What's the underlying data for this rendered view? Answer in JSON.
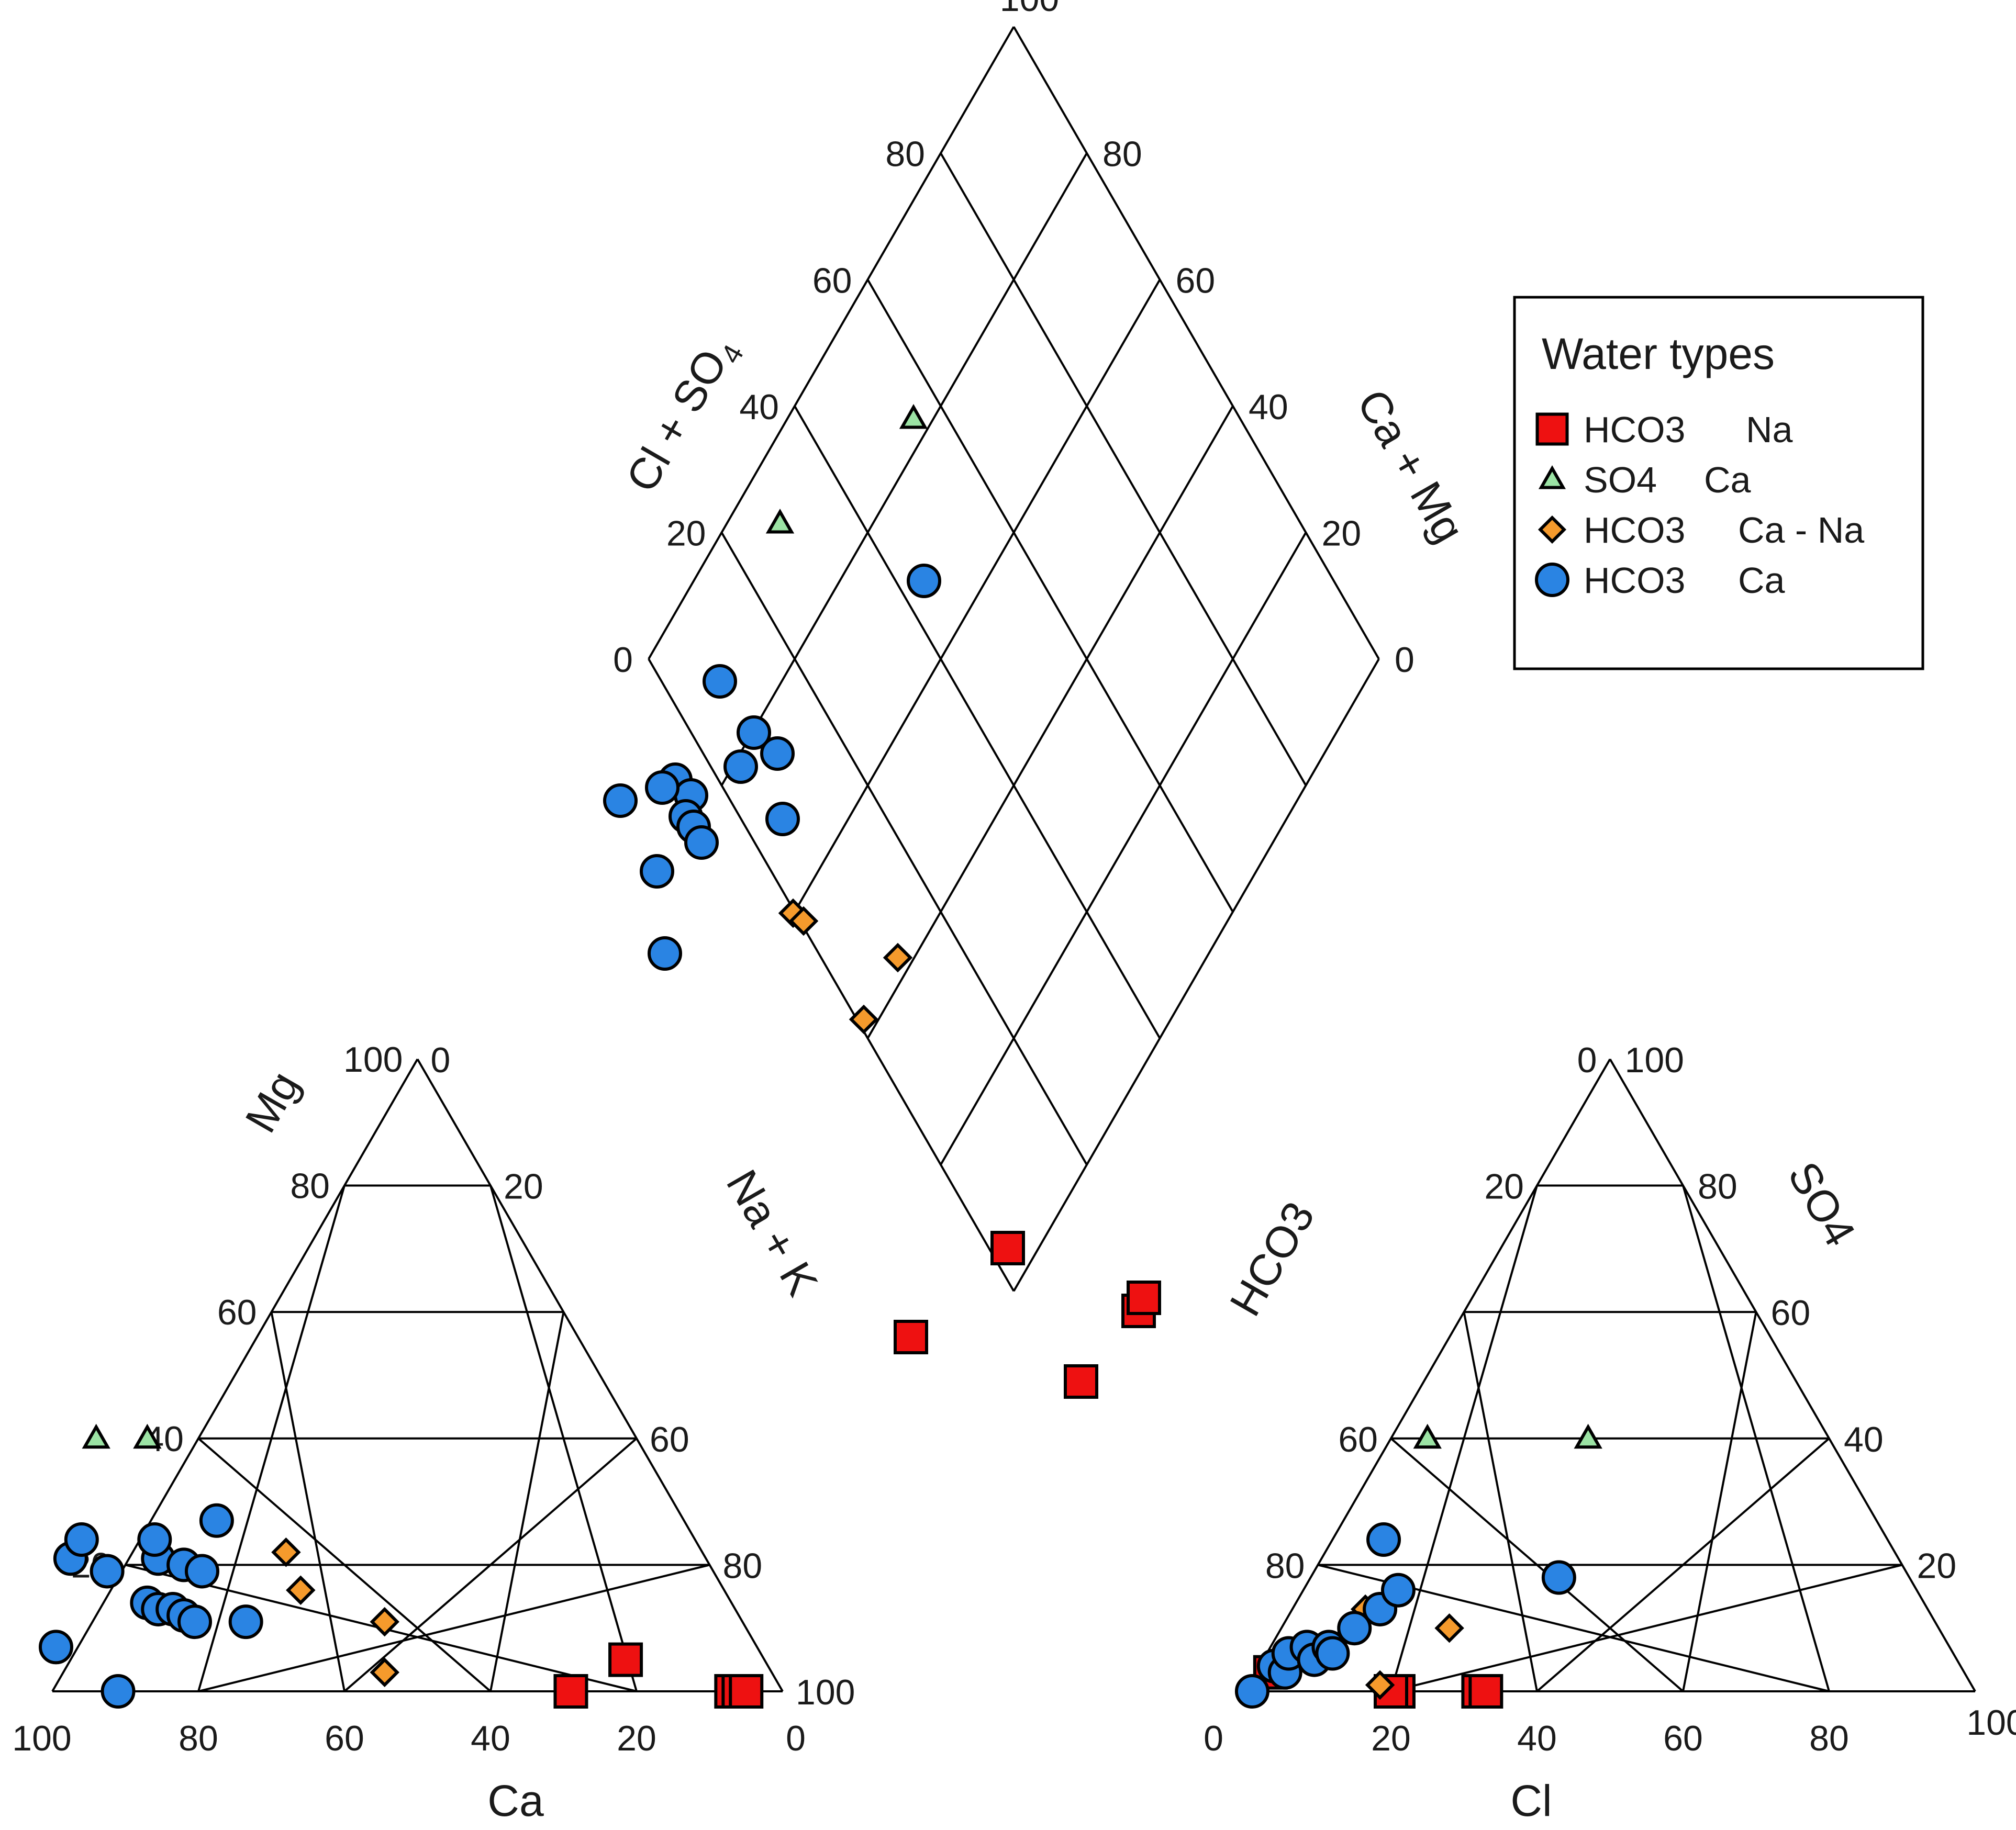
{
  "chart_data": {
    "type": "scatter",
    "legend": {
      "title": "Water types",
      "placement": "top-right",
      "entries": [
        {
          "parts": [
            "HCO3",
            "Na"
          ],
          "marker": "square",
          "color": "#ee1111"
        },
        {
          "parts": [
            "SO4",
            "Ca"
          ],
          "marker": "triangle",
          "color": "#9be3a4"
        },
        {
          "parts": [
            "HCO3",
            "Ca - Na"
          ],
          "marker": "diamond",
          "color": "#f59a2c"
        },
        {
          "parts": [
            "HCO3",
            "Ca"
          ],
          "marker": "circle",
          "color": "#2a84e3"
        }
      ]
    },
    "axes": {
      "cation": {
        "ca_label": "Ca",
        "mg_label": "Mg",
        "nak_label": "Na + K"
      },
      "anion": {
        "cl_label": "Cl",
        "so4_label": "SO4",
        "hco3_label": "HCO3"
      },
      "diamond": {
        "clso4_label": "Cl + SO",
        "clso4_sub": "4",
        "camg_label": "Ca + Mg"
      }
    },
    "ticks": {
      "cation_bottom": [
        "100",
        "80",
        "60",
        "40",
        "20",
        "0"
      ],
      "cation_left": [
        "20",
        "40",
        "60",
        "80",
        "100"
      ],
      "cation_right": [
        "0",
        "20",
        "60",
        "80",
        "100"
      ],
      "anion_bottom": [
        "0",
        "20",
        "40",
        "60",
        "80",
        "100"
      ],
      "anion_left": [
        "80",
        "60",
        "20",
        "0"
      ],
      "anion_right": [
        "100",
        "80",
        "60",
        "40",
        "20"
      ],
      "diamond_left": [
        "0",
        "20",
        "40",
        "60",
        "80"
      ],
      "diamond_right": [
        "100",
        "80",
        "60",
        "40",
        "20",
        "0"
      ]
    },
    "series": [
      {
        "marker": "square",
        "color": "#ee1111",
        "cation": [
          {
            "ca": 29,
            "mg": 0
          },
          {
            "ca": 19,
            "mg": 5
          },
          {
            "ca": 7,
            "mg": 0
          },
          {
            "ca": 6,
            "mg": 0
          },
          {
            "ca": 5,
            "mg": 0
          }
        ],
        "anion": [
          {
            "cl": 2,
            "so4": 3
          },
          {
            "cl": 21,
            "so4": 0
          },
          {
            "cl": 32,
            "so4": 0
          },
          {
            "cl": 33,
            "so4": 0
          },
          {
            "cl": 20,
            "so4": 0
          }
        ]
      },
      {
        "marker": "triangle",
        "color": "#9be3a4",
        "cation": [
          {
            "ca": 74,
            "mg": 40
          },
          {
            "ca": 67,
            "mg": 40
          }
        ],
        "anion": [
          {
            "cl": 5,
            "so4": 40
          },
          {
            "cl": 27,
            "so4": 40
          }
        ]
      },
      {
        "marker": "diamond",
        "color": "#f59a2c",
        "cation": [
          {
            "ca": 57,
            "mg": 22
          },
          {
            "ca": 58,
            "mg": 16
          },
          {
            "ca": 49,
            "mg": 11
          },
          {
            "ca": 53,
            "mg": 3
          }
        ],
        "anion": [
          {
            "cl": 10,
            "so4": 13
          },
          {
            "cl": 23,
            "so4": 10
          },
          {
            "cl": 18,
            "so4": 1
          }
        ]
      },
      {
        "marker": "circle",
        "color": "#2a84e3",
        "cation": [
          {
            "ca": 96,
            "mg": 7
          },
          {
            "ca": 91,
            "mg": 0
          },
          {
            "ca": 87,
            "mg": 21
          },
          {
            "ca": 84,
            "mg": 24
          },
          {
            "ca": 83,
            "mg": 19
          },
          {
            "ca": 80,
            "mg": 14
          },
          {
            "ca": 79,
            "mg": 13
          },
          {
            "ca": 77,
            "mg": 13
          },
          {
            "ca": 76,
            "mg": 12
          },
          {
            "ca": 75,
            "mg": 11
          },
          {
            "ca": 75,
            "mg": 21
          },
          {
            "ca": 74,
            "mg": 24
          },
          {
            "ca": 72,
            "mg": 20
          },
          {
            "ca": 70,
            "mg": 19
          },
          {
            "ca": 68,
            "mg": 11
          },
          {
            "ca": 64,
            "mg": 27
          }
        ],
        "anion": [
          {
            "cl": 2,
            "so4": 4
          },
          {
            "cl": 1,
            "so4": 0
          },
          {
            "cl": 4,
            "so4": 3
          },
          {
            "cl": 3,
            "so4": 6
          },
          {
            "cl": 5,
            "so4": 7
          },
          {
            "cl": 7,
            "so4": 5
          },
          {
            "cl": 8,
            "so4": 7
          },
          {
            "cl": 9,
            "so4": 6
          },
          {
            "cl": 10,
            "so4": 10
          },
          {
            "cl": 12,
            "so4": 13
          },
          {
            "cl": 13,
            "so4": 16
          },
          {
            "cl": 7,
            "so4": 24
          },
          {
            "cl": 34,
            "so4": 18
          }
        ]
      }
    ]
  }
}
